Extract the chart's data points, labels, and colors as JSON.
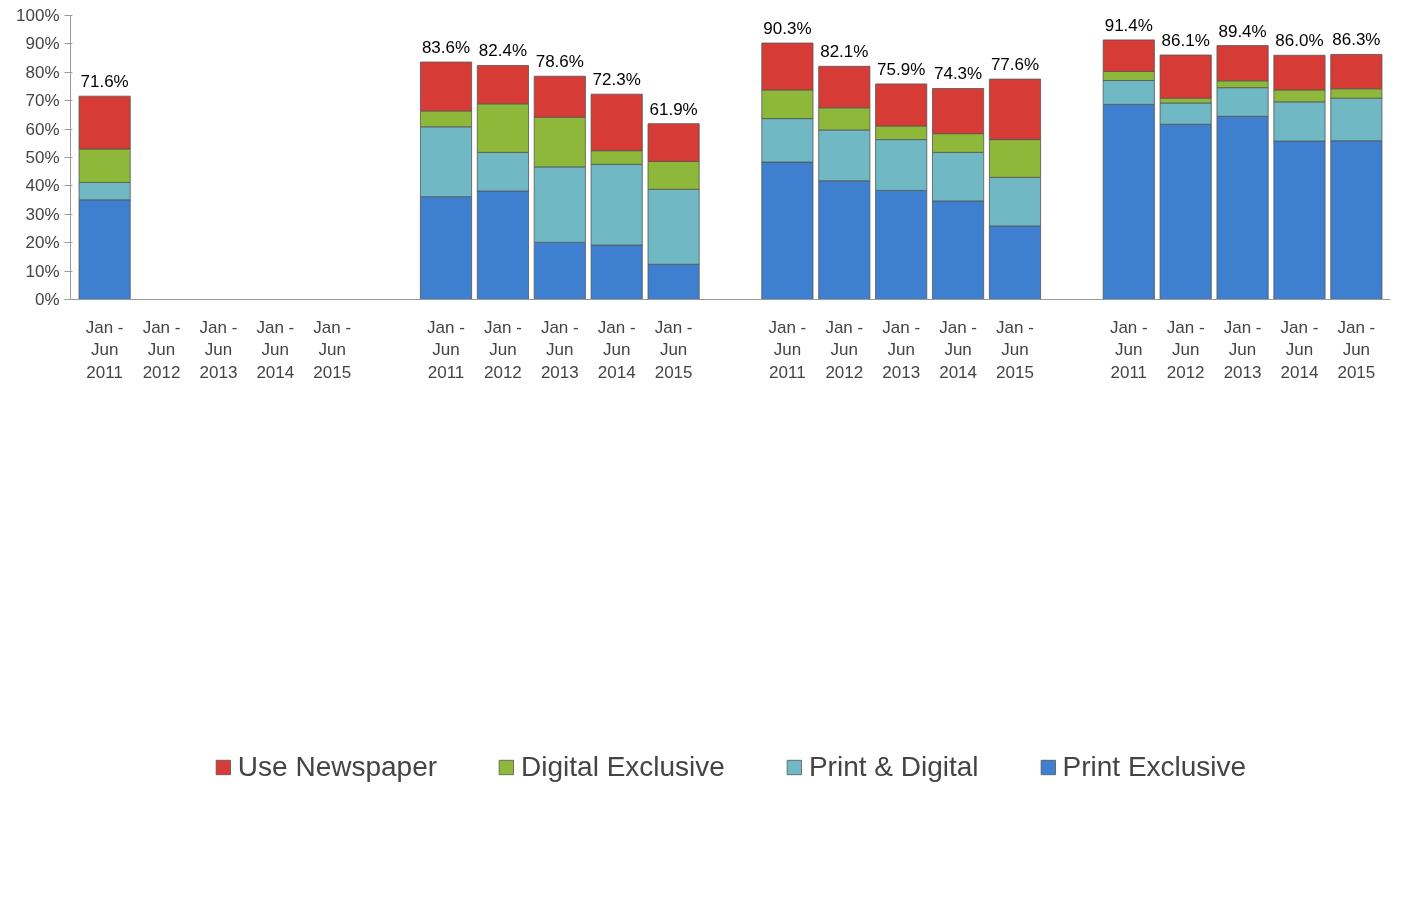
{
  "chart_data": {
    "type": "bar",
    "stacked": true,
    "categories": [
      "Jan -\nJun\n2011",
      "Jan -\nJun\n2012",
      "Jan -\nJun\n2013",
      "Jan -\nJun\n2014",
      "Jan -\nJun\n2015",
      null,
      "Jan -\nJun\n2011",
      "Jan -\nJun\n2012",
      "Jan -\nJun\n2013",
      "Jan -\nJun\n2014",
      "Jan -\nJun\n2015",
      null,
      "Jan -\nJun\n2011",
      "Jan -\nJun\n2012",
      "Jan -\nJun\n2013",
      "Jan -\nJun\n2014",
      "Jan -\nJun\n2015",
      null,
      "Jan -\nJun\n2011",
      "Jan -\nJun\n2012",
      "Jan -\nJun\n2013",
      "Jan -\nJun\n2014",
      "Jan -\nJun\n2015"
    ],
    "series": [
      {
        "name": "Print Exclusive",
        "color": "#3f7fcf",
        "values": [
          35.1,
          null,
          null,
          null,
          null,
          null,
          36.2,
          38.2,
          20.1,
          19.2,
          12.4,
          null,
          48.4,
          41.8,
          38.4,
          34.7,
          25.9,
          null,
          68.7,
          61.7,
          64.5,
          55.8,
          55.9
        ]
      },
      {
        "name": "Print & Digital",
        "color": "#6fb8c4",
        "values": [
          6.1,
          null,
          null,
          null,
          null,
          null,
          24.6,
          13.6,
          26.6,
          28.4,
          26.4,
          null,
          15.3,
          17.9,
          17.9,
          17.1,
          17.1,
          null,
          8.4,
          7.5,
          10.1,
          13.8,
          15.0
        ]
      },
      {
        "name": "Digital Exclusive",
        "color": "#8db83a",
        "values": [
          11.8,
          null,
          null,
          null,
          null,
          null,
          5.6,
          17.1,
          17.5,
          4.8,
          9.8,
          null,
          10.1,
          7.8,
          4.8,
          6.6,
          13.3,
          null,
          3.2,
          1.7,
          2.4,
          4.2,
          3.3
        ]
      },
      {
        "name": "Use Newspaper",
        "color": "#d63c35",
        "values": [
          18.6,
          null,
          null,
          null,
          null,
          null,
          17.2,
          13.5,
          14.4,
          19.9,
          13.3,
          null,
          16.5,
          14.6,
          14.8,
          15.9,
          21.3,
          null,
          11.1,
          15.2,
          12.4,
          12.2,
          12.1
        ]
      }
    ],
    "totals": [
      "71.6%",
      null,
      null,
      null,
      null,
      null,
      "83.6%",
      "82.4%",
      "78.6%",
      "72.3%",
      "61.9%",
      null,
      "90.3%",
      "82.1%",
      "75.9%",
      "74.3%",
      "77.6%",
      null,
      "91.4%",
      "86.1%",
      "89.4%",
      "86.0%",
      "86.3%"
    ],
    "ylim": [
      0,
      100
    ],
    "yticks": [
      {
        "value": 0,
        "label": "0%"
      },
      {
        "value": 10,
        "label": "10%"
      },
      {
        "value": 20,
        "label": "20%"
      },
      {
        "value": 30,
        "label": "30%"
      },
      {
        "value": 40,
        "label": "40%"
      },
      {
        "value": 50,
        "label": "50%"
      },
      {
        "value": 60,
        "label": "60%"
      },
      {
        "value": 70,
        "label": "70%"
      },
      {
        "value": 80,
        "label": "80%"
      },
      {
        "value": 90,
        "label": "90%"
      },
      {
        "value": 100,
        "label": "100%"
      }
    ],
    "grid": false,
    "legend": "bottom"
  }
}
